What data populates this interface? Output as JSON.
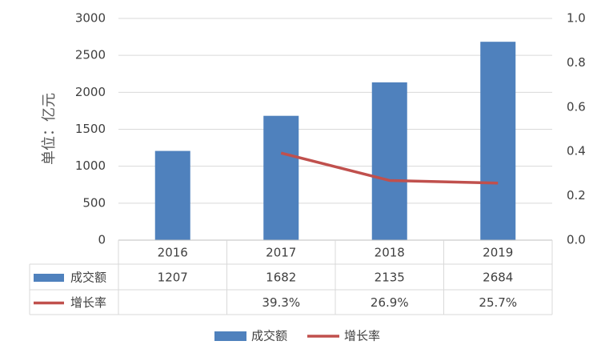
{
  "chart_data": {
    "type": "bar",
    "y_label": "单位：亿元",
    "categories": [
      "2016",
      "2017",
      "2018",
      "2019"
    ],
    "series": [
      {
        "name": "成交额",
        "type": "bar",
        "color": "#4f81bd",
        "values": [
          1207,
          1682,
          2135,
          2684
        ]
      },
      {
        "name": "增长率",
        "type": "line",
        "axis": "y2",
        "color": "#c0504d",
        "values": [
          null,
          0.393,
          0.269,
          0.257
        ],
        "value_labels": [
          null,
          "39.3%",
          "26.9%",
          "25.7%"
        ]
      }
    ],
    "ylim": [
      0,
      3000
    ],
    "yticks": [
      0,
      500,
      1000,
      1500,
      2000,
      2500,
      3000
    ],
    "y2lim": [
      0,
      1
    ],
    "y2ticks": [
      {
        "value": 0,
        "label": "0.0"
      },
      0.2,
      0.4,
      0.6,
      0.8,
      {
        "value": 1,
        "label": "1.0"
      }
    ],
    "grid": true,
    "data_table": true,
    "legend": "bottom"
  }
}
